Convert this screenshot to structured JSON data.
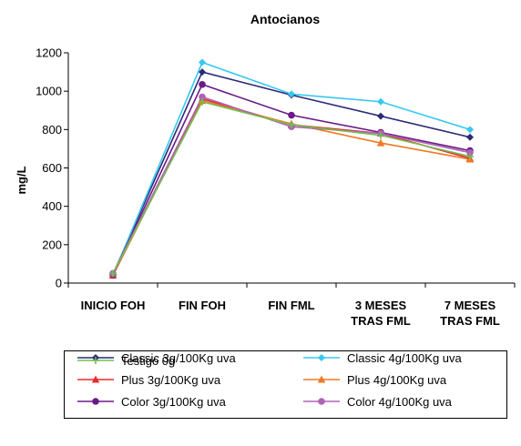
{
  "chart_data": {
    "type": "line",
    "title": "Antocianos",
    "xlabel": "",
    "ylabel": "mg/L",
    "ylim": [
      0,
      1200
    ],
    "yticks": [
      "0",
      "200",
      "400",
      "600",
      "800",
      "1000",
      "1200"
    ],
    "categories": [
      "INICIO FOH",
      "FIN FOH",
      "FIN FML",
      "3 MESES TRAS FML",
      "7 MESES TRAS FML"
    ],
    "category_lines": [
      [
        "INICIO FOH"
      ],
      [
        "FIN FOH"
      ],
      [
        "FIN FML"
      ],
      [
        "3 MESES",
        "TRAS FML"
      ],
      [
        "7 MESES",
        "TRAS FML"
      ]
    ],
    "grid": false,
    "legend_position": "bottom",
    "series": [
      {
        "name": "Classic 3g/100Kg uva",
        "color": "#2a2a78",
        "marker": "diamond",
        "values": [
          45,
          1100,
          980,
          870,
          760
        ]
      },
      {
        "name": "Classic 4g/100Kg uva",
        "color": "#38c8f0",
        "marker": "diamond",
        "values": [
          40,
          1150,
          985,
          945,
          800
        ]
      },
      {
        "name": "Plus 3g/100Kg uva",
        "color": "#f02828",
        "marker": "triangle",
        "values": [
          40,
          960,
          825,
          780,
          650
        ]
      },
      {
        "name": "Plus 4g/100Kg uva",
        "color": "#f07820",
        "marker": "triangle",
        "values": [
          45,
          950,
          830,
          730,
          645
        ]
      },
      {
        "name": "Color 3g/100Kg uva",
        "color": "#6a1a86",
        "marker": "circle",
        "values": [
          45,
          1035,
          875,
          785,
          690
        ]
      },
      {
        "name": "Color 4g/100Kg uva",
        "color": "#b060b8",
        "marker": "circle",
        "values": [
          50,
          970,
          815,
          780,
          680
        ]
      },
      {
        "name": "Testigo 0g",
        "color": "#70c050",
        "marker": "plus",
        "values": [
          50,
          945,
          825,
          770,
          660
        ]
      }
    ]
  }
}
